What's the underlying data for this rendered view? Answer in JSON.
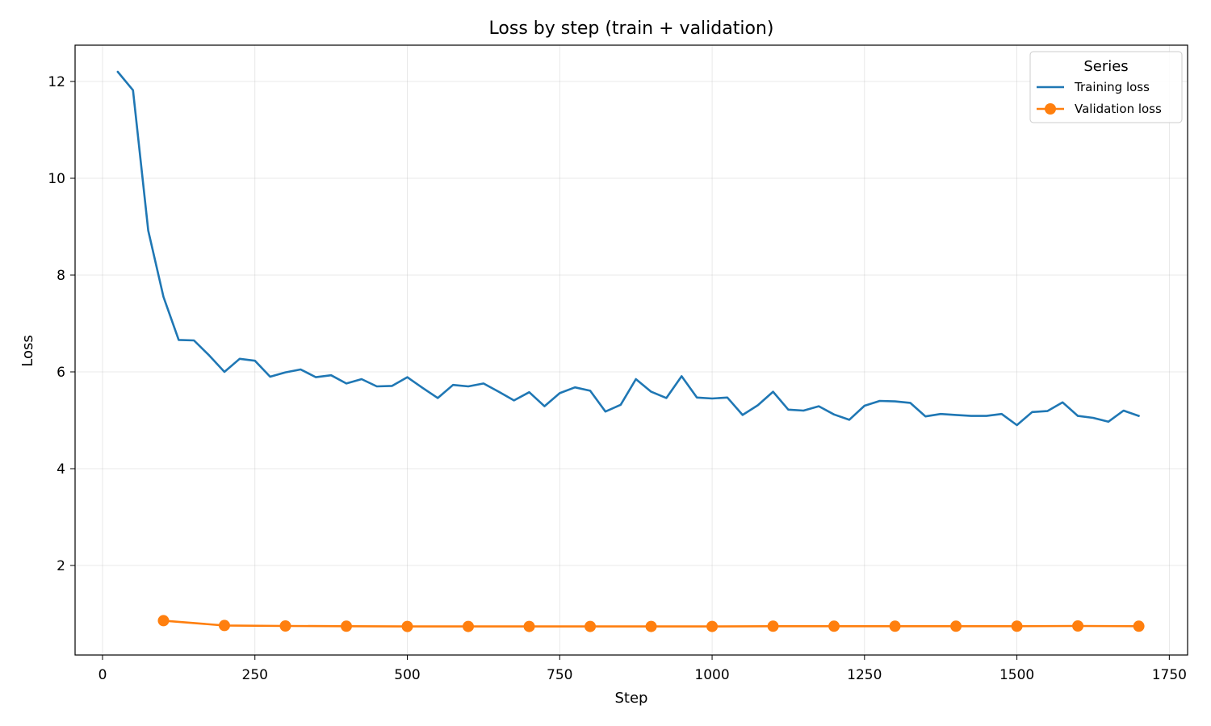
{
  "chart_data": {
    "type": "line",
    "title": "Loss by step (train + validation)",
    "xlabel": "Step",
    "ylabel": "Loss",
    "xlim": [
      -45,
      1780
    ],
    "ylim": [
      0.15,
      12.75
    ],
    "xticks": [
      0,
      250,
      500,
      750,
      1000,
      1250,
      1500,
      1750
    ],
    "yticks": [
      2,
      4,
      6,
      8,
      10,
      12
    ],
    "grid": true,
    "legend": {
      "title": "Series",
      "placement": "top-right"
    },
    "series": [
      {
        "name": "Training loss",
        "color": "#1f77b4",
        "marker": "none",
        "x": [
          25,
          50,
          75,
          100,
          125,
          150,
          175,
          200,
          225,
          250,
          275,
          300,
          325,
          350,
          375,
          400,
          425,
          450,
          475,
          500,
          525,
          550,
          575,
          600,
          625,
          650,
          675,
          700,
          725,
          750,
          775,
          800,
          825,
          850,
          875,
          900,
          925,
          950,
          975,
          1000,
          1025,
          1050,
          1075,
          1100,
          1125,
          1150,
          1175,
          1200,
          1225,
          1250,
          1275,
          1300,
          1325,
          1350,
          1375,
          1400,
          1425,
          1450,
          1475,
          1500,
          1525,
          1550,
          1575,
          1600,
          1625,
          1650,
          1675,
          1700
        ],
        "y": [
          12.2,
          11.82,
          8.92,
          7.55,
          6.66,
          6.65,
          6.34,
          6.0,
          6.27,
          6.23,
          5.9,
          5.99,
          6.05,
          5.89,
          5.93,
          5.76,
          5.85,
          5.7,
          5.71,
          5.89,
          5.67,
          5.46,
          5.73,
          5.7,
          5.76,
          5.59,
          5.41,
          5.58,
          5.29,
          5.56,
          5.68,
          5.61,
          5.18,
          5.32,
          5.85,
          5.59,
          5.46,
          5.91,
          5.47,
          5.45,
          5.47,
          5.11,
          5.31,
          5.59,
          5.22,
          5.2,
          5.29,
          5.12,
          5.01,
          5.3,
          5.4,
          5.39,
          5.36,
          5.08,
          5.13,
          5.11,
          5.09,
          5.09,
          5.13,
          4.9,
          5.17,
          5.19,
          5.37,
          5.09,
          5.05,
          4.97,
          5.2,
          5.09
        ]
      },
      {
        "name": "Validation loss",
        "color": "#ff7f0e",
        "marker": "circle",
        "x": [
          100,
          200,
          300,
          400,
          500,
          600,
          700,
          800,
          900,
          1000,
          1100,
          1200,
          1300,
          1400,
          1500,
          1600,
          1700
        ],
        "y": [
          0.86,
          0.76,
          0.75,
          0.745,
          0.74,
          0.74,
          0.74,
          0.74,
          0.74,
          0.74,
          0.745,
          0.745,
          0.745,
          0.745,
          0.745,
          0.75,
          0.745
        ]
      }
    ]
  }
}
